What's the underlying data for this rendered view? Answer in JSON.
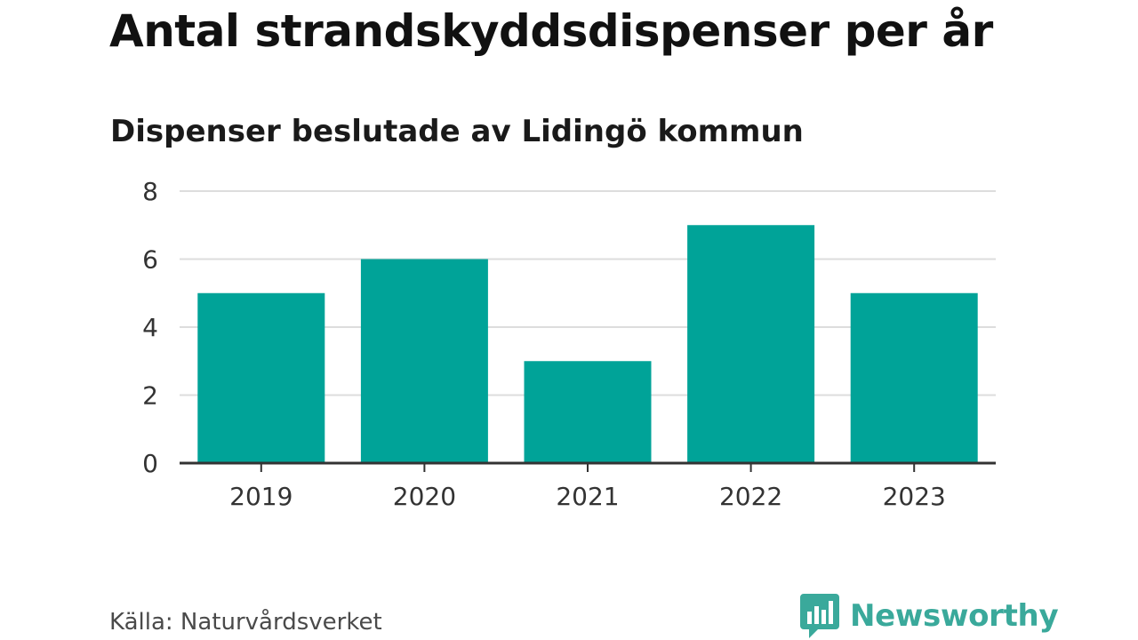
{
  "header": {
    "title": "Antal strandskyddsdispenser per år",
    "subtitle": "Dispenser beslutade av Lidingö kommun"
  },
  "footer": {
    "source": "Källa: Naturvårdsverket",
    "brand": "Newsworthy",
    "brand_icon": "newsworthy-logo-icon"
  },
  "colors": {
    "bar": "#00a398",
    "grid": "#dddddd",
    "axis": "#333333",
    "brand": "#3aa99b"
  },
  "chart_data": {
    "type": "bar",
    "title": "Antal strandskyddsdispenser per år",
    "subtitle": "Dispenser beslutade av Lidingö kommun",
    "categories": [
      "2019",
      "2020",
      "2021",
      "2022",
      "2023"
    ],
    "values": [
      5,
      6,
      3,
      7,
      5
    ],
    "xlabel": "",
    "ylabel": "",
    "ylim": [
      0,
      8
    ],
    "yticks": [
      "0",
      "2",
      "4",
      "6",
      "8"
    ],
    "grid": true,
    "legend": "none"
  }
}
